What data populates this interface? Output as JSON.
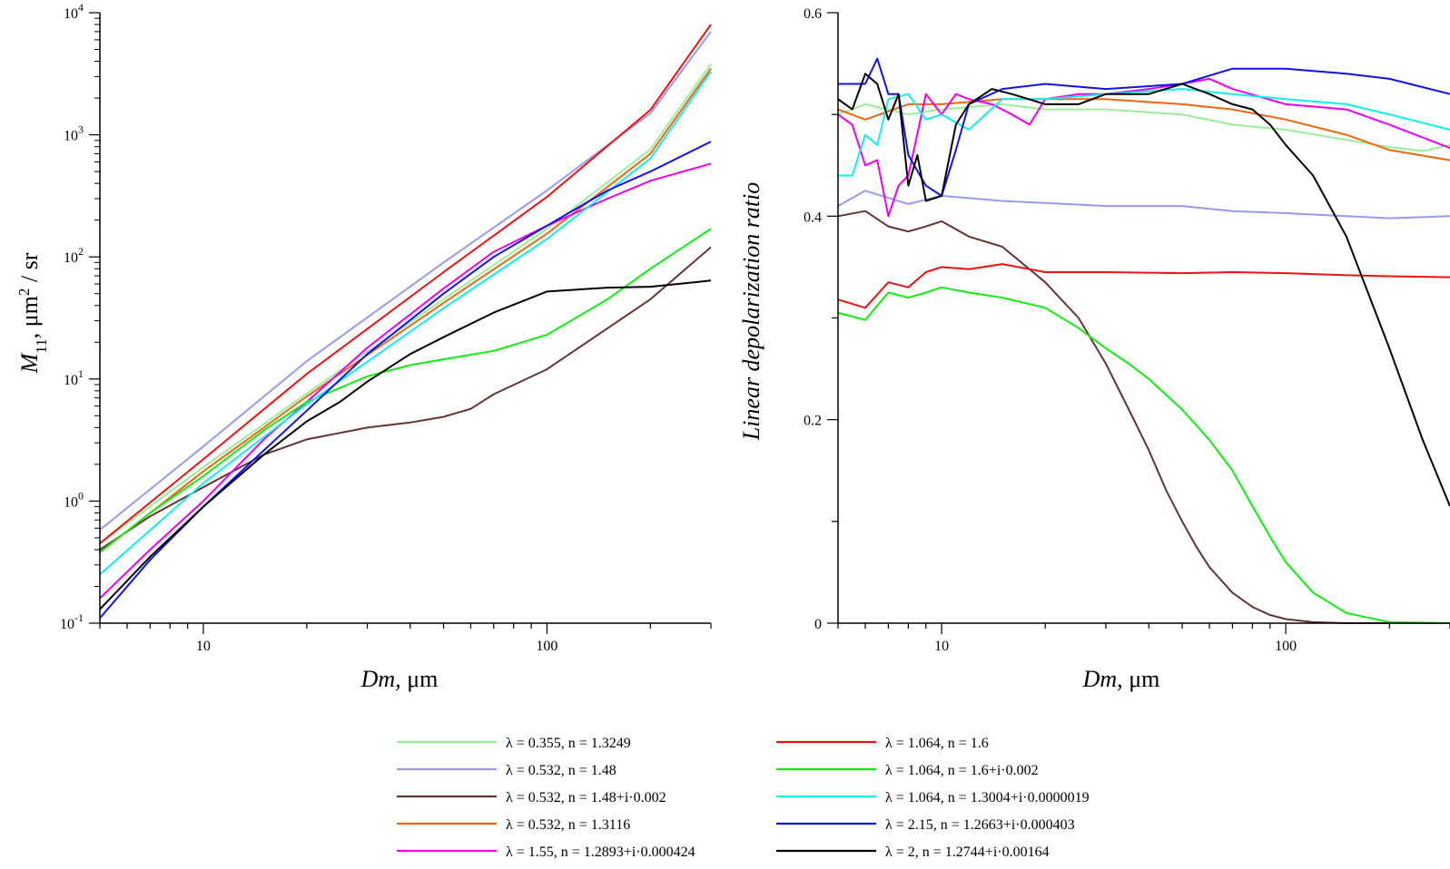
{
  "chart_data": [
    {
      "type": "line",
      "xlabel_italic": "Dm,",
      "xlabel_unit": "μm",
      "ylabel_main": "M",
      "ylabel_sub": "11",
      "ylabel_rest": ", μm",
      "ylabel_sup": "2",
      "ylabel_end": " / sr",
      "x_scale": "log",
      "y_scale": "log",
      "xlim": [
        5,
        300
      ],
      "ylim": [
        0.1,
        10000
      ],
      "x_tick_labels": [
        "10",
        "100"
      ],
      "y_tick_labels": [
        {
          "base": "10",
          "exp": "-1"
        },
        {
          "base": "10",
          "exp": "0"
        },
        {
          "base": "10",
          "exp": "1"
        },
        {
          "base": "10",
          "exp": "2"
        },
        {
          "base": "10",
          "exp": "3"
        },
        {
          "base": "10",
          "exp": "4"
        }
      ],
      "series": [
        {
          "name": "λ = 0.355, n = 1.3249",
          "color": "#99ee99",
          "x": [
            5,
            10,
            20,
            50,
            100,
            200,
            300
          ],
          "y": [
            0.45,
            1.9,
            7.6,
            45,
            170,
            760,
            3800
          ]
        },
        {
          "name": "λ = 0.532, n = 1.48",
          "color": "#9999ee",
          "x": [
            5,
            10,
            20,
            50,
            100,
            200,
            300
          ],
          "y": [
            0.58,
            2.8,
            14,
            90,
            350,
            1500,
            7000
          ]
        },
        {
          "name": "λ = 0.532, n = 1.48+i·0.002",
          "color": "#663333",
          "x": [
            5,
            7,
            10,
            15,
            20,
            30,
            40,
            50,
            60,
            70,
            100,
            200,
            300
          ],
          "y": [
            0.4,
            0.75,
            1.3,
            2.4,
            3.2,
            4.0,
            4.4,
            4.9,
            5.7,
            7.5,
            12,
            45,
            120
          ]
        },
        {
          "name": "λ = 0.532, n = 1.3116",
          "color": "#ee6611",
          "x": [
            5,
            10,
            20,
            50,
            100,
            200,
            300
          ],
          "y": [
            0.38,
            1.75,
            7.2,
            42,
            155,
            700,
            3500
          ]
        },
        {
          "name": "λ = 1.55, n = 1.2893+i·0.000424",
          "color": "#ee00ee",
          "x": [
            5,
            7,
            10,
            15,
            20,
            30,
            50,
            70,
            100,
            150,
            200,
            300
          ],
          "y": [
            0.16,
            0.4,
            1.0,
            3.2,
            6.5,
            18,
            55,
            110,
            180,
            300,
            420,
            580
          ]
        },
        {
          "name": "λ = 1.064, n = 1.6",
          "color": "#ee1111",
          "x": [
            5,
            10,
            20,
            50,
            100,
            200,
            300
          ],
          "y": [
            0.45,
            2.2,
            11,
            75,
            310,
            1600,
            8000
          ]
        },
        {
          "name": "λ = 1.064, n = 1.6+i·0.002",
          "color": "#11ee11",
          "x": [
            5,
            7,
            10,
            15,
            20,
            30,
            40,
            50,
            70,
            100,
            150,
            200,
            300
          ],
          "y": [
            0.38,
            0.8,
            1.6,
            3.8,
            6.5,
            10.5,
            13,
            14.5,
            17,
            23,
            45,
            80,
            170
          ]
        },
        {
          "name": "λ = 1.064, n = 1.3004+i·0.0000019",
          "color": "#11eeee",
          "x": [
            5,
            10,
            20,
            50,
            100,
            200,
            300
          ],
          "y": [
            0.25,
            1.4,
            6.2,
            38,
            140,
            640,
            3300
          ]
        },
        {
          "name": "λ = 2.15, n = 1.2663+i·0.000403",
          "color": "#1111ee",
          "x": [
            5,
            7,
            10,
            15,
            20,
            30,
            50,
            70,
            100,
            150,
            200,
            300
          ],
          "y": [
            0.11,
            0.33,
            0.9,
            2.6,
            5.5,
            16,
            50,
            100,
            180,
            350,
            500,
            880
          ]
        },
        {
          "name": "λ = 2, n = 1.2744+i·0.00164",
          "color": "#000000",
          "x": [
            5,
            7,
            10,
            15,
            20,
            25,
            30,
            40,
            50,
            70,
            100,
            150,
            200,
            300
          ],
          "y": [
            0.13,
            0.35,
            0.9,
            2.4,
            4.5,
            6.5,
            9.5,
            16,
            22,
            35,
            52,
            56,
            57,
            64
          ]
        }
      ]
    },
    {
      "type": "line",
      "xlabel_italic": "Dm,",
      "xlabel_unit": "μm",
      "ylabel": "Linear depolarization ratio",
      "x_scale": "log",
      "y_scale": "linear",
      "xlim": [
        5,
        300
      ],
      "ylim": [
        0,
        0.6
      ],
      "x_tick_labels": [
        "10",
        "100"
      ],
      "y_tick_labels": [
        "0",
        "0.2",
        "0.4",
        "0.6"
      ],
      "series": [
        {
          "name": "λ = 0.355, n = 1.3249",
          "color": "#99ee99",
          "x": [
            5,
            6,
            8,
            10,
            15,
            20,
            30,
            50,
            70,
            100,
            150,
            200,
            250,
            300
          ],
          "y": [
            0.5,
            0.51,
            0.5,
            0.505,
            0.51,
            0.505,
            0.505,
            0.5,
            0.49,
            0.485,
            0.475,
            0.468,
            0.464,
            0.47
          ]
        },
        {
          "name": "λ = 0.532, n = 1.48",
          "color": "#9999ee",
          "x": [
            5,
            6,
            8,
            10,
            15,
            20,
            30,
            50,
            70,
            100,
            150,
            200,
            300
          ],
          "y": [
            0.41,
            0.425,
            0.412,
            0.42,
            0.415,
            0.413,
            0.41,
            0.41,
            0.405,
            0.403,
            0.4,
            0.398,
            0.4
          ]
        },
        {
          "name": "λ = 0.532, n = 1.48+i·0.002",
          "color": "#663333",
          "x": [
            5,
            6,
            7,
            8,
            9,
            10,
            12,
            15,
            20,
            25,
            30,
            35,
            40,
            45,
            50,
            55,
            60,
            70,
            80,
            90,
            100,
            120,
            150,
            200,
            300
          ],
          "y": [
            0.4,
            0.405,
            0.39,
            0.385,
            0.39,
            0.395,
            0.38,
            0.37,
            0.335,
            0.3,
            0.255,
            0.21,
            0.17,
            0.13,
            0.1,
            0.075,
            0.055,
            0.03,
            0.016,
            0.008,
            0.004,
            0.001,
            0.0,
            0.0,
            0.0
          ]
        },
        {
          "name": "λ = 0.532, n = 1.3116",
          "color": "#ee6611",
          "x": [
            5,
            6,
            8,
            10,
            15,
            20,
            30,
            50,
            70,
            100,
            150,
            200,
            300
          ],
          "y": [
            0.505,
            0.495,
            0.51,
            0.51,
            0.515,
            0.515,
            0.515,
            0.51,
            0.505,
            0.495,
            0.48,
            0.465,
            0.455
          ]
        },
        {
          "name": "λ = 1.55, n = 1.2893+i·0.000424",
          "color": "#ee00ee",
          "x": [
            5,
            5.5,
            6,
            6.5,
            7,
            7.5,
            8,
            9,
            10,
            11,
            12,
            14,
            16,
            18,
            20,
            25,
            30,
            40,
            50,
            60,
            70,
            100,
            150,
            200,
            300
          ],
          "y": [
            0.5,
            0.49,
            0.45,
            0.455,
            0.4,
            0.43,
            0.44,
            0.52,
            0.5,
            0.52,
            0.515,
            0.51,
            0.5,
            0.49,
            0.515,
            0.52,
            0.52,
            0.525,
            0.53,
            0.535,
            0.525,
            0.51,
            0.505,
            0.49,
            0.467
          ]
        },
        {
          "name": "λ = 1.064, n = 1.6",
          "color": "#ee1111",
          "x": [
            5,
            6,
            7,
            8,
            9,
            10,
            12,
            15,
            20,
            30,
            50,
            70,
            100,
            150,
            200,
            300
          ],
          "y": [
            0.318,
            0.31,
            0.335,
            0.33,
            0.345,
            0.35,
            0.348,
            0.353,
            0.345,
            0.345,
            0.344,
            0.345,
            0.344,
            0.342,
            0.341,
            0.34
          ]
        },
        {
          "name": "λ = 1.064, n = 1.6+i·0.002",
          "color": "#11ee11",
          "x": [
            5,
            6,
            7,
            8,
            9,
            10,
            12,
            15,
            20,
            25,
            30,
            35,
            40,
            50,
            60,
            70,
            80,
            90,
            100,
            120,
            150,
            200,
            300
          ],
          "y": [
            0.305,
            0.298,
            0.325,
            0.32,
            0.325,
            0.33,
            0.325,
            0.32,
            0.31,
            0.29,
            0.27,
            0.255,
            0.24,
            0.21,
            0.18,
            0.15,
            0.115,
            0.085,
            0.06,
            0.03,
            0.01,
            0.001,
            0.0
          ]
        },
        {
          "name": "λ = 1.064, n = 1.3004+i·0.0000019",
          "color": "#11eeee",
          "x": [
            5,
            5.5,
            6,
            6.5,
            7,
            8,
            9,
            10,
            12,
            15,
            20,
            30,
            50,
            70,
            100,
            150,
            200,
            300
          ],
          "y": [
            0.44,
            0.44,
            0.48,
            0.47,
            0.515,
            0.52,
            0.495,
            0.5,
            0.485,
            0.515,
            0.515,
            0.52,
            0.525,
            0.52,
            0.515,
            0.51,
            0.5,
            0.485
          ]
        },
        {
          "name": "λ = 2.15, n = 1.2663+i·0.000403",
          "color": "#1111ee",
          "x": [
            5,
            6,
            6.5,
            7,
            7.5,
            8,
            9,
            10,
            11,
            12,
            15,
            20,
            30,
            50,
            70,
            100,
            150,
            200,
            300
          ],
          "y": [
            0.53,
            0.53,
            0.555,
            0.52,
            0.52,
            0.46,
            0.43,
            0.42,
            0.465,
            0.51,
            0.525,
            0.53,
            0.525,
            0.53,
            0.545,
            0.545,
            0.54,
            0.535,
            0.52
          ]
        },
        {
          "name": "λ = 2, n = 1.2744+i·0.00164",
          "color": "#000000",
          "x": [
            5,
            5.5,
            6,
            6.5,
            7,
            7.5,
            8,
            8.5,
            9,
            10,
            11,
            12,
            14,
            16,
            20,
            25,
            30,
            40,
            50,
            60,
            70,
            80,
            90,
            100,
            120,
            150,
            200,
            250,
            300
          ],
          "y": [
            0.515,
            0.505,
            0.54,
            0.53,
            0.495,
            0.52,
            0.43,
            0.46,
            0.415,
            0.42,
            0.49,
            0.51,
            0.525,
            0.52,
            0.51,
            0.51,
            0.52,
            0.52,
            0.53,
            0.52,
            0.51,
            0.505,
            0.49,
            0.47,
            0.44,
            0.38,
            0.27,
            0.18,
            0.115
          ]
        }
      ]
    }
  ]
}
